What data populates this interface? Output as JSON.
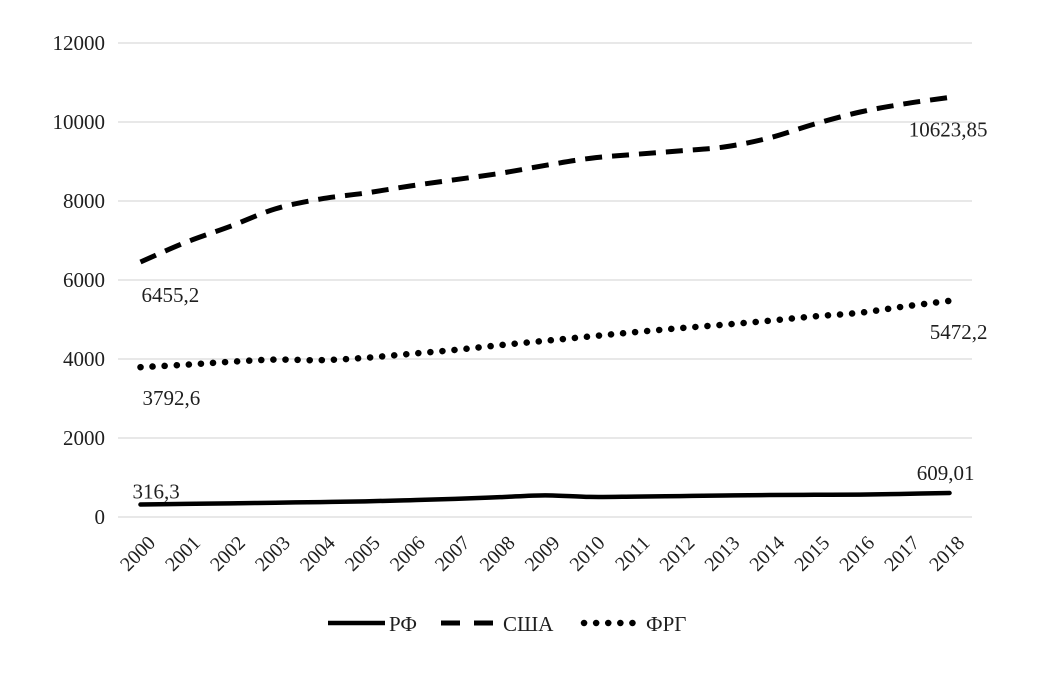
{
  "chart_data": {
    "type": "line",
    "x": [
      2000,
      2001,
      2002,
      2003,
      2004,
      2005,
      2006,
      2007,
      2008,
      2009,
      2010,
      2011,
      2012,
      2013,
      2014,
      2015,
      2016,
      2017,
      2018
    ],
    "series": [
      {
        "name": "РФ",
        "style": "solid",
        "values": [
          316.3,
          332,
          345,
          362,
          378,
          396,
          425,
          458,
          502,
          548,
          508,
          516,
          530,
          544,
          556,
          562,
          568,
          586,
          609.01
        ],
        "start_label": "316,3",
        "end_label": "609,01"
      },
      {
        "name": "США",
        "style": "dashed",
        "values": [
          6455.2,
          6950,
          7360,
          7800,
          8050,
          8200,
          8380,
          8540,
          8700,
          8900,
          9080,
          9180,
          9270,
          9370,
          9600,
          9950,
          10250,
          10460,
          10623.85
        ],
        "start_label": "6455,2",
        "end_label": "10623,85"
      },
      {
        "name": "ФРГ",
        "style": "dotted",
        "values": [
          3792.6,
          3855,
          3930,
          3985,
          3970,
          4030,
          4130,
          4230,
          4350,
          4460,
          4570,
          4680,
          4780,
          4870,
          4970,
          5080,
          5170,
          5330,
          5472.2
        ],
        "start_label": "3792,6",
        "end_label": "5472,2"
      }
    ],
    "y_ticks": [
      0,
      2000,
      4000,
      6000,
      8000,
      10000,
      12000
    ],
    "ylim": [
      0,
      12000
    ],
    "grid": "horizontal-only",
    "legend_position": "bottom",
    "legend": [
      {
        "name": "РФ",
        "style": "solid"
      },
      {
        "name": "США",
        "style": "dashed"
      },
      {
        "name": "ФРГ",
        "style": "dotted"
      }
    ],
    "colors": {
      "line": "#000000",
      "grid": "#d9d9d9",
      "text": "#1f1f1f",
      "background": "#ffffff"
    }
  }
}
